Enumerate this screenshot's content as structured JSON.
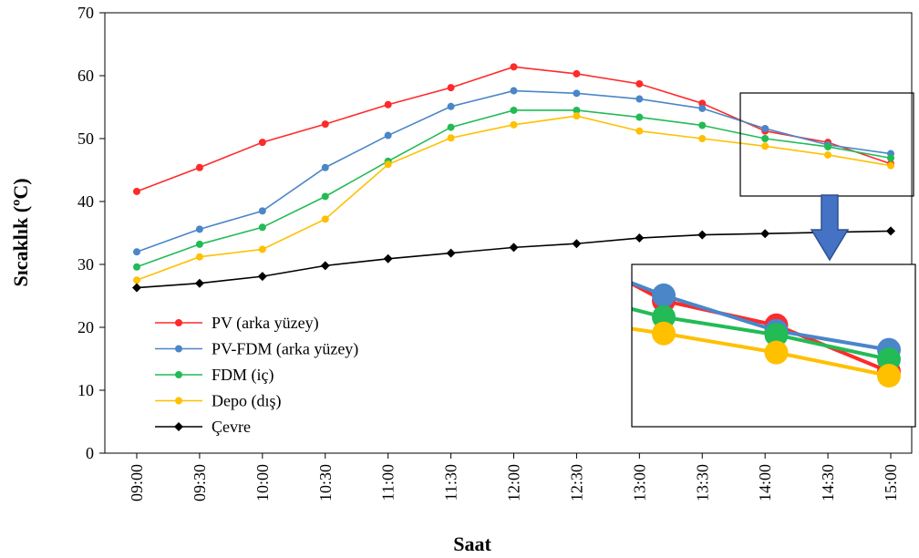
{
  "chart_data": {
    "type": "line",
    "xlabel": "Saat",
    "ylabel": "Sıcaklık (ºC)",
    "ylim": [
      0,
      70
    ],
    "yticks": [
      "0",
      "10",
      "20",
      "30",
      "40",
      "50",
      "60",
      "70"
    ],
    "categories": [
      "09:00",
      "09:30",
      "10:00",
      "10:30",
      "11:00",
      "11:30",
      "12:00",
      "12:30",
      "13:00",
      "13:30",
      "14:00",
      "14:30",
      "15:00"
    ],
    "grid": false,
    "legend_position": "lower-left",
    "series": [
      {
        "name": "PV (arka yüzey)",
        "color": "#ff2a2a",
        "marker": "circle",
        "values": [
          41.6,
          45.4,
          49.4,
          52.3,
          55.4,
          58.1,
          61.4,
          60.3,
          58.7,
          55.6,
          51.2,
          49.4,
          46.0
        ]
      },
      {
        "name": "PV-FDM (arka yüzey)",
        "color": "#4a86c8",
        "marker": "circle",
        "values": [
          32.0,
          35.6,
          38.5,
          45.4,
          50.5,
          55.1,
          57.6,
          57.2,
          56.3,
          54.8,
          51.6,
          49.0,
          47.6
        ]
      },
      {
        "name": "FDM (iç)",
        "color": "#22bb55",
        "marker": "circle",
        "values": [
          29.6,
          33.2,
          35.9,
          40.8,
          46.4,
          51.8,
          54.5,
          54.5,
          53.4,
          52.1,
          50.0,
          48.7,
          46.9
        ]
      },
      {
        "name": "Depo (dış)",
        "color": "#ffc000",
        "marker": "circle",
        "values": [
          27.5,
          31.2,
          32.4,
          37.2,
          45.9,
          50.1,
          52.2,
          53.6,
          51.2,
          50.0,
          48.8,
          47.4,
          45.7
        ]
      },
      {
        "name": "Çevre",
        "color": "#000000",
        "marker": "diamond",
        "values": [
          26.3,
          27.0,
          28.1,
          29.8,
          30.9,
          31.8,
          32.7,
          33.3,
          34.2,
          34.7,
          34.9,
          35.1,
          35.3
        ]
      }
    ],
    "annotations": [
      {
        "type": "highlight-box",
        "target_categories": [
          "14:00",
          "15:00"
        ]
      },
      {
        "type": "zoom-inset",
        "source": "highlight-box",
        "arrow": "down"
      }
    ]
  }
}
